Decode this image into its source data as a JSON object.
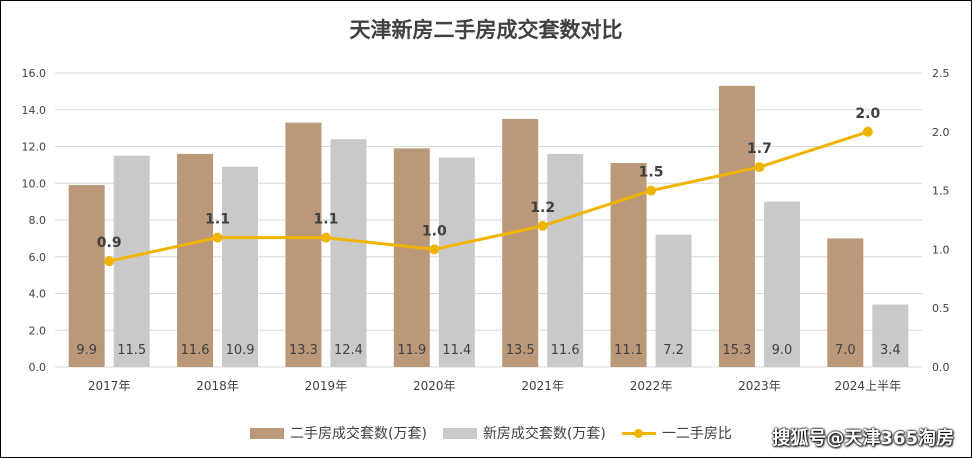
{
  "title": "天津新房二手房成交套数对比",
  "watermark": "搜狐号@天津365淘房",
  "colors": {
    "second_hand": "#bc987a",
    "new_house": "#c9c9c9",
    "ratio": "#f0b400",
    "grid": "#d9d9d9",
    "text": "#404040"
  },
  "chart_data": {
    "type": "bar",
    "title": "天津新房二手房成交套数对比",
    "categories": [
      "2017年",
      "2018年",
      "2019年",
      "2020年",
      "2021年",
      "2022年",
      "2023年",
      "2024上半年"
    ],
    "series": [
      {
        "name": "二手房成交套数(万套)",
        "type": "bar",
        "axis": "left",
        "values": [
          9.9,
          11.6,
          13.3,
          11.9,
          13.5,
          11.1,
          15.3,
          7.0
        ]
      },
      {
        "name": "新房成交套数(万套)",
        "type": "bar",
        "axis": "left",
        "values": [
          11.5,
          10.9,
          12.4,
          11.4,
          11.6,
          7.2,
          9.0,
          3.4
        ]
      },
      {
        "name": "一二手房比",
        "type": "line",
        "axis": "right",
        "values": [
          0.9,
          1.1,
          1.1,
          1.0,
          1.2,
          1.5,
          1.7,
          2.0
        ]
      }
    ],
    "left_axis": {
      "ylim": [
        0,
        16
      ],
      "ticks": [
        "0.0",
        "2.0",
        "4.0",
        "6.0",
        "8.0",
        "10.0",
        "12.0",
        "14.0",
        "16.0"
      ]
    },
    "right_axis": {
      "ylim": [
        0,
        2.5
      ],
      "ticks": [
        "0.0",
        "0.5",
        "1.0",
        "1.5",
        "2.0",
        "2.5"
      ]
    },
    "grid": true,
    "legend_position": "bottom"
  },
  "legend": {
    "second_hand": "二手房成交套数(万套)",
    "new_house": "新房成交套数(万套)",
    "ratio": "一二手房比"
  }
}
